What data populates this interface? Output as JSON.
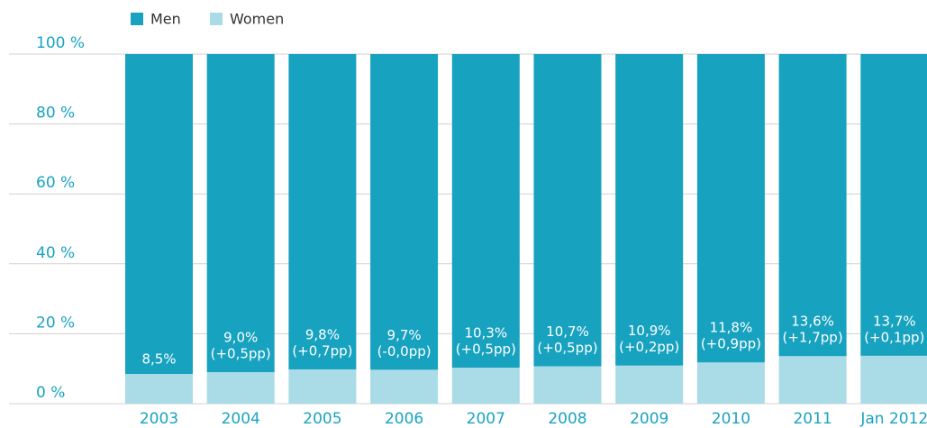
{
  "chart_data": {
    "type": "stacked_bar",
    "categories": [
      "2003",
      "2004",
      "2005",
      "2006",
      "2007",
      "2008",
      "2009",
      "2010",
      "2011",
      "Jan 2012"
    ],
    "series": [
      {
        "name": "Men",
        "color": "#17a2c0",
        "values": [
          91.5,
          91.0,
          90.2,
          90.3,
          89.7,
          89.3,
          89.1,
          88.2,
          86.4,
          86.3
        ]
      },
      {
        "name": "Women",
        "color": "#a9dce6",
        "values": [
          8.5,
          9.0,
          9.8,
          9.7,
          10.3,
          10.7,
          10.9,
          11.8,
          13.6,
          13.7
        ],
        "value_labels": [
          "8,5%",
          "9,0%",
          "9,8%",
          "9,7%",
          "10,3%",
          "10,7%",
          "10,9%",
          "11,8%",
          "13,6%",
          "13,7%"
        ],
        "change_labels": [
          null,
          "(+0,5pp)",
          "(+0,7pp)",
          "(-0,0pp)",
          "(+0,5pp)",
          "(+0,5pp)",
          "(+0,2pp)",
          "(+0,9pp)",
          "(+1,7pp)",
          "(+0,1pp)"
        ]
      }
    ],
    "ylim": [
      0,
      100
    ],
    "yticks": [
      {
        "value": 0,
        "label": "0 %"
      },
      {
        "value": 20,
        "label": "20 %"
      },
      {
        "value": 40,
        "label": "40 %"
      },
      {
        "value": 60,
        "label": "60 %"
      },
      {
        "value": 80,
        "label": "80 %"
      },
      {
        "value": 100,
        "label": "100 %"
      }
    ],
    "grid": true
  }
}
